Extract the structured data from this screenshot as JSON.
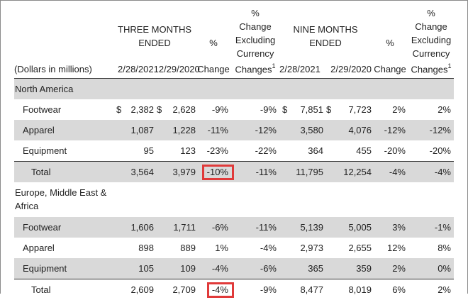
{
  "header": {
    "units": "(Dollars in millions)",
    "group1": "THREE MONTHS\nENDED",
    "group2": "NINE MONTHS\nENDED",
    "col_date1": "2/28/2021",
    "col_date2": "2/29/2020",
    "col_pct_symbol": "%",
    "col_change": "Change",
    "col_pct_ex": "%\nChange\nExcluding\nCurrency\nChanges",
    "footnote_mark": "1"
  },
  "regions": [
    {
      "name": "North America",
      "rows": [
        {
          "label": "Footwear",
          "d1": "$",
          "v1": "2,382",
          "d2": "$",
          "v2": "2,628",
          "p1": "-9%",
          "p2": "-9%",
          "d3": "$",
          "v3": "7,851",
          "d4": "$",
          "v4": "7,723",
          "p3": "2%",
          "p4": "2%"
        },
        {
          "label": "Apparel",
          "d1": "",
          "v1": "1,087",
          "d2": "",
          "v2": "1,228",
          "p1": "-11%",
          "p2": "-12%",
          "d3": "",
          "v3": "3,580",
          "d4": "",
          "v4": "4,076",
          "p3": "-12%",
          "p4": "-12%"
        },
        {
          "label": "Equipment",
          "d1": "",
          "v1": "95",
          "d2": "",
          "v2": "123",
          "p1": "-23%",
          "p2": "-22%",
          "d3": "",
          "v3": "364",
          "d4": "",
          "v4": "455",
          "p3": "-20%",
          "p4": "-20%"
        },
        {
          "label": "Total",
          "d1": "",
          "v1": "3,564",
          "d2": "",
          "v2": "3,979",
          "p1": "-10%",
          "p2": "-11%",
          "d3": "",
          "v3": "11,795",
          "d4": "",
          "v4": "12,254",
          "p3": "-4%",
          "p4": "-4%"
        }
      ]
    },
    {
      "name": "Europe, Middle East &\nAfrica",
      "rows": [
        {
          "label": "Footwear",
          "d1": "",
          "v1": "1,606",
          "d2": "",
          "v2": "1,711",
          "p1": "-6%",
          "p2": "-11%",
          "d3": "",
          "v3": "5,139",
          "d4": "",
          "v4": "5,005",
          "p3": "3%",
          "p4": "-1%"
        },
        {
          "label": "Apparel",
          "d1": "",
          "v1": "898",
          "d2": "",
          "v2": "889",
          "p1": "1%",
          "p2": "-4%",
          "d3": "",
          "v3": "2,973",
          "d4": "",
          "v4": "2,655",
          "p3": "12%",
          "p4": "8%"
        },
        {
          "label": "Equipment",
          "d1": "",
          "v1": "105",
          "d2": "",
          "v2": "109",
          "p1": "-4%",
          "p2": "-6%",
          "d3": "",
          "v3": "365",
          "d4": "",
          "v4": "359",
          "p3": "2%",
          "p4": "0%"
        },
        {
          "label": "Total",
          "d1": "",
          "v1": "2,609",
          "d2": "",
          "v2": "2,709",
          "p1": "-4%",
          "p2": "-9%",
          "d3": "",
          "v3": "8,477",
          "d4": "",
          "v4": "8,019",
          "p3": "6%",
          "p4": "2%"
        }
      ]
    }
  ],
  "highlight_color": "#e03a3a",
  "stripe_color": "#d9d9d9"
}
